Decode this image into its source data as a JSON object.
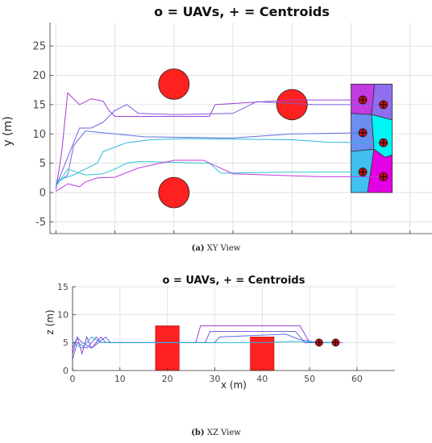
{
  "figure_captions": {
    "a": {
      "label": "(a)",
      "text": " XY View"
    },
    "b": {
      "label": "(b)",
      "text": " XZ View"
    }
  },
  "colors": {
    "obstacle": "#ff2020",
    "path_purple": "#9f3fd6",
    "path_blue": "#5c6ee8",
    "path_cyan": "#2bb5d9",
    "uav_marker": "#cc1111",
    "centroid_marker": "#000000"
  },
  "chart_data": [
    {
      "type": "line",
      "title": "o = UAVs, + = Centroids",
      "xlabel": "",
      "ylabel": "y (m)",
      "xlim": [
        -1,
        64
      ],
      "ylim": [
        -7,
        29
      ],
      "xticks": [
        0,
        10,
        20,
        30,
        40,
        50,
        60
      ],
      "xtick_labels": [
        "",
        "",
        "",
        "",
        "",
        "",
        ""
      ],
      "yticks": [
        -5,
        0,
        5,
        10,
        15,
        20,
        25
      ],
      "ytick_labels": [
        "-5",
        "0",
        "5",
        "10",
        "15",
        "20",
        "25"
      ],
      "grid": true,
      "obstacles": [
        {
          "cx": 20,
          "cy": 18.5,
          "r": 2.6
        },
        {
          "cx": 20,
          "cy": 0,
          "r": 2.6
        },
        {
          "cx": 40,
          "cy": 15,
          "r": 2.6
        }
      ],
      "voronoi_cells": [
        {
          "color": "#c23be3",
          "points": [
            [
              50,
              18.5
            ],
            [
              54,
              18.5
            ],
            [
              53.5,
              13.3
            ],
            [
              50,
              13.5
            ]
          ]
        },
        {
          "color": "#8f6ff0",
          "points": [
            [
              54,
              18.5
            ],
            [
              57,
              18.5
            ],
            [
              57,
              12.4
            ],
            [
              53.5,
              13.3
            ]
          ]
        },
        {
          "color": "#6a8ff0",
          "points": [
            [
              50,
              13.5
            ],
            [
              53.5,
              13.3
            ],
            [
              53.9,
              7.4
            ],
            [
              50,
              7
            ]
          ]
        },
        {
          "color": "#00f5f5",
          "points": [
            [
              53.5,
              13.3
            ],
            [
              57,
              12.4
            ],
            [
              57,
              6.4
            ],
            [
              55.8,
              6.0
            ],
            [
              53.9,
              7.4
            ]
          ]
        },
        {
          "color": "#3fc0ee",
          "points": [
            [
              50,
              7
            ],
            [
              53.9,
              7.4
            ],
            [
              52.8,
              0
            ],
            [
              50,
              0
            ]
          ]
        },
        {
          "color": "#e400e4",
          "points": [
            [
              53.9,
              7.4
            ],
            [
              55.8,
              6.0
            ],
            [
              57,
              6.4
            ],
            [
              57,
              0
            ],
            [
              52.8,
              0
            ]
          ]
        }
      ],
      "uav_positions": [
        [
          52,
          15.8
        ],
        [
          55.5,
          15
        ],
        [
          52,
          10.2
        ],
        [
          55.5,
          8.5
        ],
        [
          52,
          3.5
        ],
        [
          55.5,
          2.7
        ]
      ],
      "series": [
        {
          "color": "#9f3fd6",
          "points": [
            [
              0,
              0.5
            ],
            [
              1,
              7
            ],
            [
              2,
              17
            ],
            [
              3,
              16
            ],
            [
              4,
              15
            ],
            [
              6,
              16
            ],
            [
              8,
              15.6
            ],
            [
              9,
              14
            ],
            [
              10,
              13
            ],
            [
              18,
              13
            ],
            [
              26,
              13
            ],
            [
              27,
              15
            ],
            [
              40,
              15.8
            ],
            [
              52,
              15.8
            ]
          ]
        },
        {
          "color": "#7a5ce0",
          "points": [
            [
              0,
              1
            ],
            [
              2,
              6
            ],
            [
              4,
              11
            ],
            [
              6,
              11
            ],
            [
              8,
              12
            ],
            [
              10,
              14
            ],
            [
              12,
              15
            ],
            [
              14,
              13.5
            ],
            [
              20,
              13.3
            ],
            [
              30,
              13.5
            ],
            [
              34,
              15.5
            ],
            [
              44,
              15
            ],
            [
              55.5,
              15
            ]
          ]
        },
        {
          "color": "#5c6ee8",
          "points": [
            [
              0,
              1.5
            ],
            [
              2,
              3
            ],
            [
              3,
              8
            ],
            [
              5,
              10.5
            ],
            [
              10,
              10
            ],
            [
              15,
              9.5
            ],
            [
              30,
              9.3
            ],
            [
              40,
              10
            ],
            [
              52,
              10.2
            ]
          ]
        },
        {
          "color": "#2bb5d9",
          "points": [
            [
              0,
              2
            ],
            [
              3,
              3
            ],
            [
              5,
              4
            ],
            [
              7,
              5
            ],
            [
              8,
              7
            ],
            [
              12,
              8.5
            ],
            [
              16,
              9
            ],
            [
              22,
              9.2
            ],
            [
              40,
              9
            ],
            [
              46,
              8.6
            ],
            [
              55.5,
              8.5
            ]
          ]
        },
        {
          "color": "#2bc7d0",
          "points": [
            [
              0,
              1
            ],
            [
              2,
              4
            ],
            [
              5,
              3
            ],
            [
              8,
              3.2
            ],
            [
              10,
              4
            ],
            [
              12,
              5
            ],
            [
              14,
              5.3
            ],
            [
              26,
              5
            ],
            [
              28,
              3.3
            ],
            [
              40,
              3.5
            ],
            [
              52,
              3.5
            ]
          ]
        },
        {
          "color": "#c23be3",
          "points": [
            [
              0,
              0.2
            ],
            [
              2,
              1.5
            ],
            [
              4,
              1
            ],
            [
              5,
              1.8
            ],
            [
              7,
              2.5
            ],
            [
              10,
              2.6
            ],
            [
              14,
              4.2
            ],
            [
              20,
              5.5
            ],
            [
              25,
              5.5
            ],
            [
              30,
              3.2
            ],
            [
              45,
              2.7
            ],
            [
              55.5,
              2.7
            ]
          ]
        }
      ]
    },
    {
      "type": "line",
      "title": "o = UAVs, + = Centroids",
      "xlabel": "x (m)",
      "ylabel": "z (m)",
      "xlim": [
        0,
        68
      ],
      "ylim": [
        0,
        15
      ],
      "xticks": [
        0,
        10,
        20,
        30,
        40,
        50,
        60
      ],
      "xtick_labels": [
        "0",
        "10",
        "20",
        "30",
        "40",
        "50",
        "60"
      ],
      "yticks": [
        0,
        5,
        10,
        15
      ],
      "ytick_labels": [
        "0",
        "5",
        "10",
        "15"
      ],
      "grid": true,
      "obstacles": [
        {
          "x0": 17.5,
          "x1": 22.5,
          "z": 8
        },
        {
          "x0": 37.5,
          "x1": 42.5,
          "z": 6
        }
      ],
      "uav_positions": [
        [
          52,
          5
        ],
        [
          55.5,
          5
        ]
      ],
      "series": [
        {
          "color": "#9f3fd6",
          "points": [
            [
              0,
              3
            ],
            [
              1,
              6
            ],
            [
              2,
              3
            ],
            [
              3,
              6
            ],
            [
              4,
              4
            ],
            [
              6,
              6
            ],
            [
              7,
              5
            ],
            [
              26,
              5
            ],
            [
              27,
              8
            ],
            [
              48,
              8
            ],
            [
              50,
              5
            ],
            [
              57,
              5
            ]
          ]
        },
        {
          "color": "#7a5ce0",
          "points": [
            [
              0,
              2
            ],
            [
              1,
              5
            ],
            [
              3,
              4
            ],
            [
              5,
              6
            ],
            [
              6,
              5
            ],
            [
              28,
              5
            ],
            [
              29,
              7
            ],
            [
              47,
              7
            ],
            [
              49,
              5
            ],
            [
              56,
              5
            ]
          ]
        },
        {
          "color": "#5c6ee8",
          "points": [
            [
              0,
              4
            ],
            [
              1,
              6
            ],
            [
              2,
              5
            ],
            [
              4,
              4
            ],
            [
              7,
              6
            ],
            [
              8,
              5
            ],
            [
              30,
              5
            ],
            [
              31,
              6
            ],
            [
              45,
              6.5
            ],
            [
              48,
              5.5
            ],
            [
              52,
              5
            ]
          ]
        },
        {
          "color": "#2bb5d9",
          "points": [
            [
              0,
              5
            ],
            [
              2,
              4
            ],
            [
              4,
              6
            ],
            [
              6,
              5
            ],
            [
              40,
              5
            ],
            [
              46,
              5.2
            ],
            [
              55,
              5
            ]
          ]
        }
      ]
    }
  ]
}
